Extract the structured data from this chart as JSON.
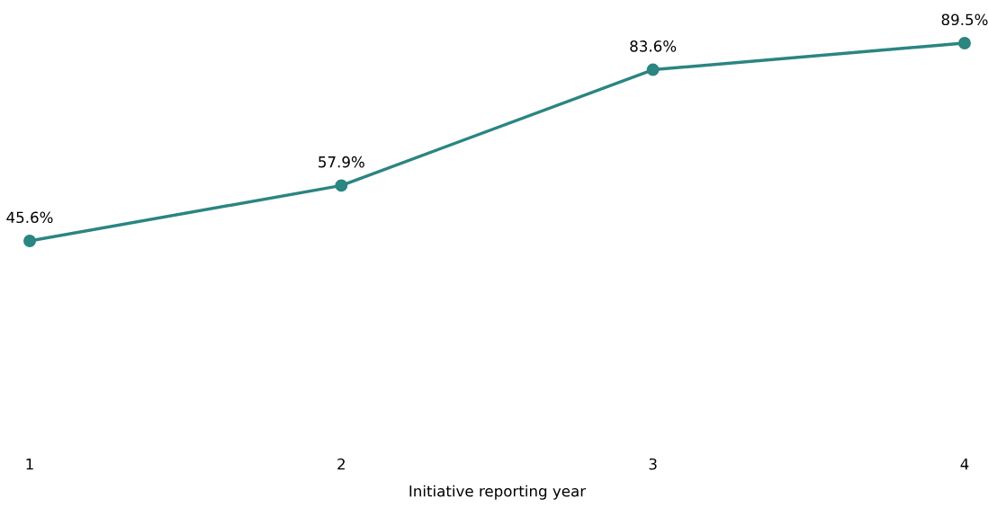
{
  "chart_data": {
    "type": "line",
    "xlabel": "Initiative reporting year",
    "categories": [
      "1",
      "2",
      "3",
      "4"
    ],
    "series": [
      {
        "color": "#2b8581",
        "values": [
          45.6,
          57.9,
          83.6,
          89.5
        ],
        "value_labels": [
          "45.6%",
          "57.9%",
          "83.6%",
          "89.5%"
        ]
      }
    ],
    "tick_labels": "x",
    "marker": "circle",
    "line_style": "solid",
    "grid": false,
    "legend": false
  }
}
